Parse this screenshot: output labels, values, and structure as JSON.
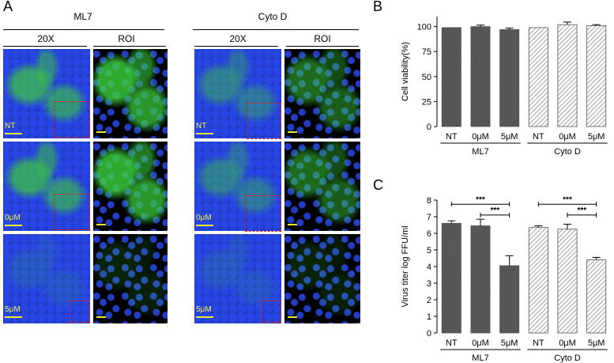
{
  "panels": {
    "a": "A",
    "b": "B",
    "c": "C"
  },
  "microscopy": {
    "groups": [
      "ML7",
      "Cyto D"
    ],
    "mag_labels": [
      "20X",
      "ROI",
      "20X",
      "ROI"
    ],
    "treatments": [
      "NT",
      "0μM",
      "5μM"
    ],
    "colors": {
      "nuclei": "#2846e6",
      "actin": "#3cc83c",
      "roi_box": "#e02020",
      "scale_text": "#f2f23c"
    }
  },
  "chart_data": [
    {
      "panel": "B",
      "type": "bar",
      "categories": [
        "NT",
        "0μM",
        "5μM",
        "NT",
        "0μM",
        "5μM"
      ],
      "groups": [
        {
          "name": "ML7",
          "categories": [
            "NT",
            "0μM",
            "5μM"
          ]
        },
        {
          "name": "Cyto D",
          "categories": [
            "NT",
            "0μM",
            "5μM"
          ]
        }
      ],
      "values": [
        99,
        100,
        97,
        99,
        102,
        101
      ],
      "errors": [
        0,
        1.5,
        1.5,
        0,
        2.5,
        1
      ],
      "fills": [
        "solid",
        "solid",
        "solid",
        "hatched",
        "hatched",
        "hatched"
      ],
      "ylabel": "Cell viability(%)",
      "ylim": [
        0,
        110
      ],
      "yticks": [
        0,
        25,
        50,
        75,
        100
      ],
      "colors": {
        "solid": "#555555",
        "hatch": "#9a9a9a"
      }
    },
    {
      "panel": "C",
      "type": "bar",
      "categories": [
        "NT",
        "0μM",
        "5μM",
        "NT",
        "0μM",
        "5μM"
      ],
      "groups": [
        {
          "name": "ML7",
          "categories": [
            "NT",
            "0μM",
            "5μM"
          ]
        },
        {
          "name": "Cyto D",
          "categories": [
            "NT",
            "0μM",
            "5μM"
          ]
        }
      ],
      "values": [
        6.6,
        6.45,
        4.05,
        6.35,
        6.25,
        4.4
      ],
      "errors": [
        0.15,
        0.4,
        0.6,
        0.1,
        0.3,
        0.15
      ],
      "fills": [
        "solid",
        "solid",
        "solid",
        "hatched",
        "hatched",
        "hatched"
      ],
      "ylabel": "Virus titer log FFU/ml",
      "ylim": [
        0,
        8
      ],
      "yticks": [
        0,
        1,
        2,
        3,
        4,
        5,
        6,
        7,
        8
      ],
      "significance": [
        {
          "from": 0,
          "to": 2,
          "label": "***",
          "y": 7.75
        },
        {
          "from": 1,
          "to": 2,
          "label": "***",
          "y": 7.1
        },
        {
          "from": 3,
          "to": 5,
          "label": "***",
          "y": 7.75
        },
        {
          "from": 4,
          "to": 5,
          "label": "***",
          "y": 7.1
        }
      ],
      "colors": {
        "solid": "#555555",
        "hatch": "#9a9a9a"
      }
    }
  ]
}
